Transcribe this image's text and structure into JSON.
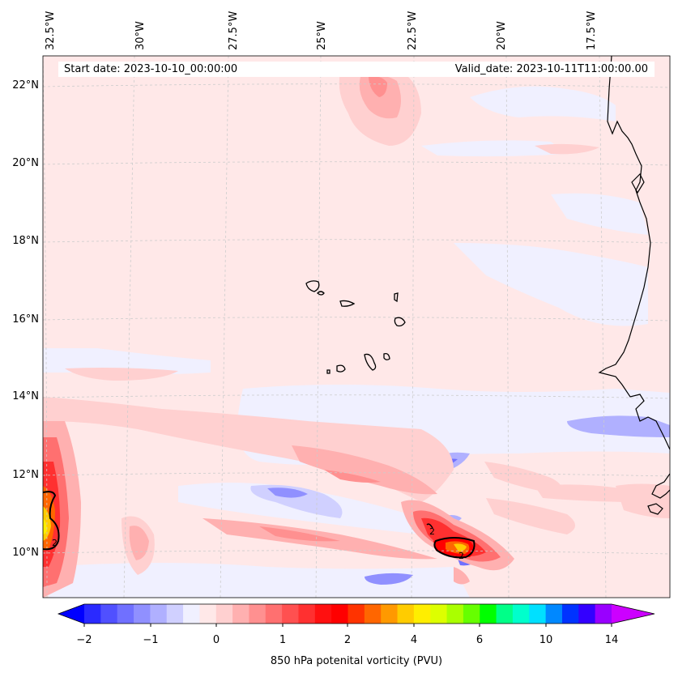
{
  "header": {
    "start_date": "Start date: 2023-10-10_00:00:00",
    "valid_date": "Valid_date: 2023-10-11T11:00:00.00"
  },
  "map": {
    "longitude_labels": [
      "32.5°W",
      "30°W",
      "27.5°W",
      "25°W",
      "22.5°W",
      "20°W",
      "17.5°W"
    ],
    "latitude_labels": [
      "22°N",
      "20°N",
      "18°N",
      "16°N",
      "14°N",
      "12°N",
      "10°N"
    ],
    "contour_label": "2"
  },
  "colorbar": {
    "label": "850 hPa potenital vorticity (PVU)",
    "ticks": [
      "−2",
      "−1",
      "0",
      "1",
      "2",
      "4",
      "6",
      "10",
      "14"
    ],
    "colors": [
      "#0000ff",
      "#2a2aff",
      "#5050ff",
      "#7070ff",
      "#9090ff",
      "#b0b0ff",
      "#d0d0ff",
      "#f0f0ff",
      "#ffe8e8",
      "#ffd0d0",
      "#ffb0b0",
      "#ff9090",
      "#ff7070",
      "#ff5050",
      "#ff3030",
      "#ff1010",
      "#ff0000",
      "#ff3300",
      "#ff6600",
      "#ff9900",
      "#ffcc00",
      "#ffee00",
      "#ddff00",
      "#aaff00",
      "#66ff00",
      "#00ff00",
      "#00ff88",
      "#00ffcc",
      "#00e0ff",
      "#0088ff",
      "#0033ff",
      "#3300ff",
      "#9900ff",
      "#cc00ff"
    ]
  }
}
